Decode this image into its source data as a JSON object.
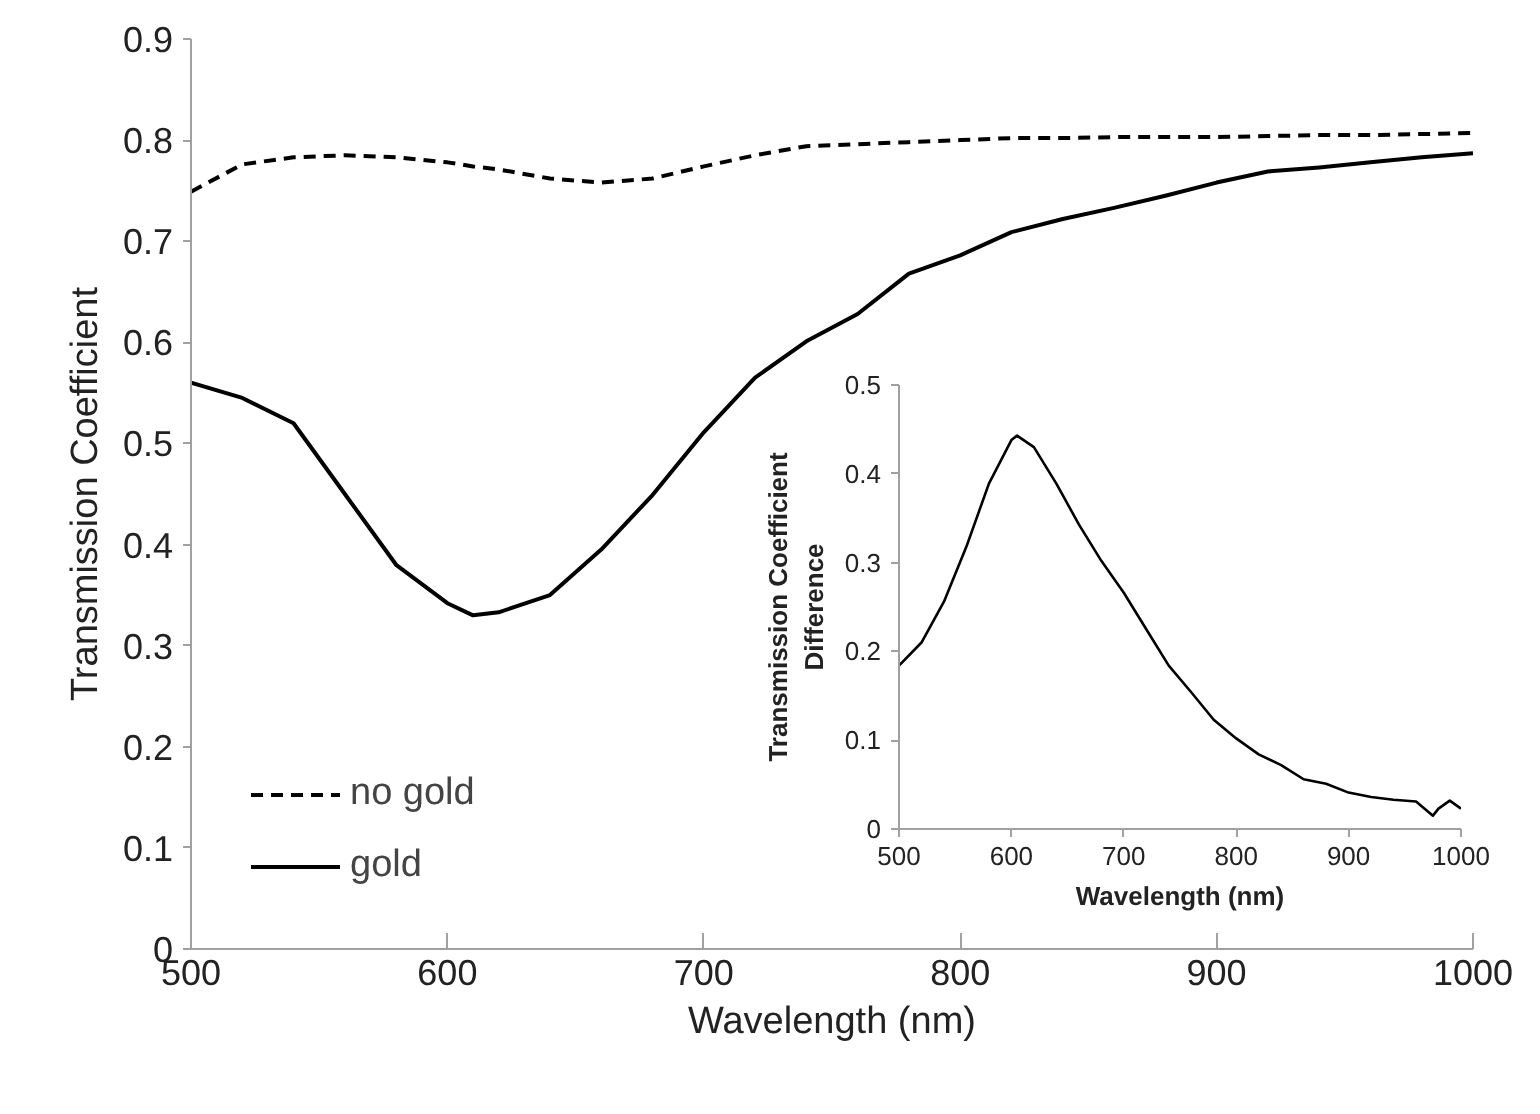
{
  "chart_data": [
    {
      "type": "line",
      "xlabel": "Wavelength (nm)",
      "ylabel": "Transmission Coefficient",
      "xlim": [
        500,
        1000
      ],
      "ylim": [
        0,
        0.9
      ],
      "xticks": [
        500,
        600,
        700,
        800,
        900,
        1000
      ],
      "yticks": [
        0,
        0.1,
        0.2,
        0.3,
        0.4,
        0.5,
        0.6,
        0.7,
        0.8,
        0.9
      ],
      "legend": "bottom left",
      "x": [
        500,
        520,
        540,
        560,
        580,
        600,
        610,
        620,
        640,
        660,
        680,
        700,
        720,
        740,
        760,
        780,
        800,
        820,
        840,
        860,
        880,
        900,
        920,
        940,
        960,
        980,
        1000
      ],
      "series": [
        {
          "name": "no gold",
          "color": "#000000",
          "line_style": "dashed",
          "values": [
            0.749,
            0.776,
            0.783,
            0.785,
            0.783,
            0.778,
            0.774,
            0.771,
            0.762,
            0.758,
            0.762,
            0.774,
            0.785,
            0.794,
            0.796,
            0.798,
            0.8,
            0.802,
            0.802,
            0.803,
            0.803,
            0.803,
            0.804,
            0.805,
            0.805,
            0.806,
            0.807
          ]
        },
        {
          "name": "gold",
          "color": "#000000",
          "line_style": "solid",
          "values": [
            0.56,
            0.545,
            0.52,
            0.45,
            0.38,
            0.342,
            0.33,
            0.333,
            0.35,
            0.395,
            0.449,
            0.511,
            0.565,
            0.601,
            0.628,
            0.668,
            0.686,
            0.709,
            0.722,
            0.733,
            0.745,
            0.758,
            0.769,
            0.773,
            0.778,
            0.783,
            0.787
          ]
        }
      ]
    },
    {
      "type": "line",
      "xlabel": "Wavelength (nm)",
      "ylabel": "Transmission Coefficient Difference",
      "xlim": [
        500,
        1000
      ],
      "ylim": [
        0,
        0.5
      ],
      "xticks": [
        500,
        600,
        700,
        800,
        900,
        1000
      ],
      "yticks": [
        0,
        0.1,
        0.2,
        0.3,
        0.4,
        0.5
      ],
      "x": [
        500,
        520,
        540,
        560,
        580,
        600,
        605,
        620,
        640,
        660,
        680,
        700,
        720,
        740,
        760,
        780,
        800,
        820,
        840,
        860,
        880,
        900,
        920,
        940,
        960,
        975,
        980,
        990,
        1000
      ],
      "series": [
        {
          "color": "#000000",
          "values": [
            0.184,
            0.21,
            0.256,
            0.318,
            0.389,
            0.438,
            0.443,
            0.43,
            0.389,
            0.343,
            0.302,
            0.266,
            0.225,
            0.184,
            0.154,
            0.123,
            0.102,
            0.084,
            0.072,
            0.056,
            0.051,
            0.041,
            0.036,
            0.033,
            0.031,
            0.015,
            0.023,
            0.032,
            0.023
          ]
        }
      ]
    }
  ]
}
